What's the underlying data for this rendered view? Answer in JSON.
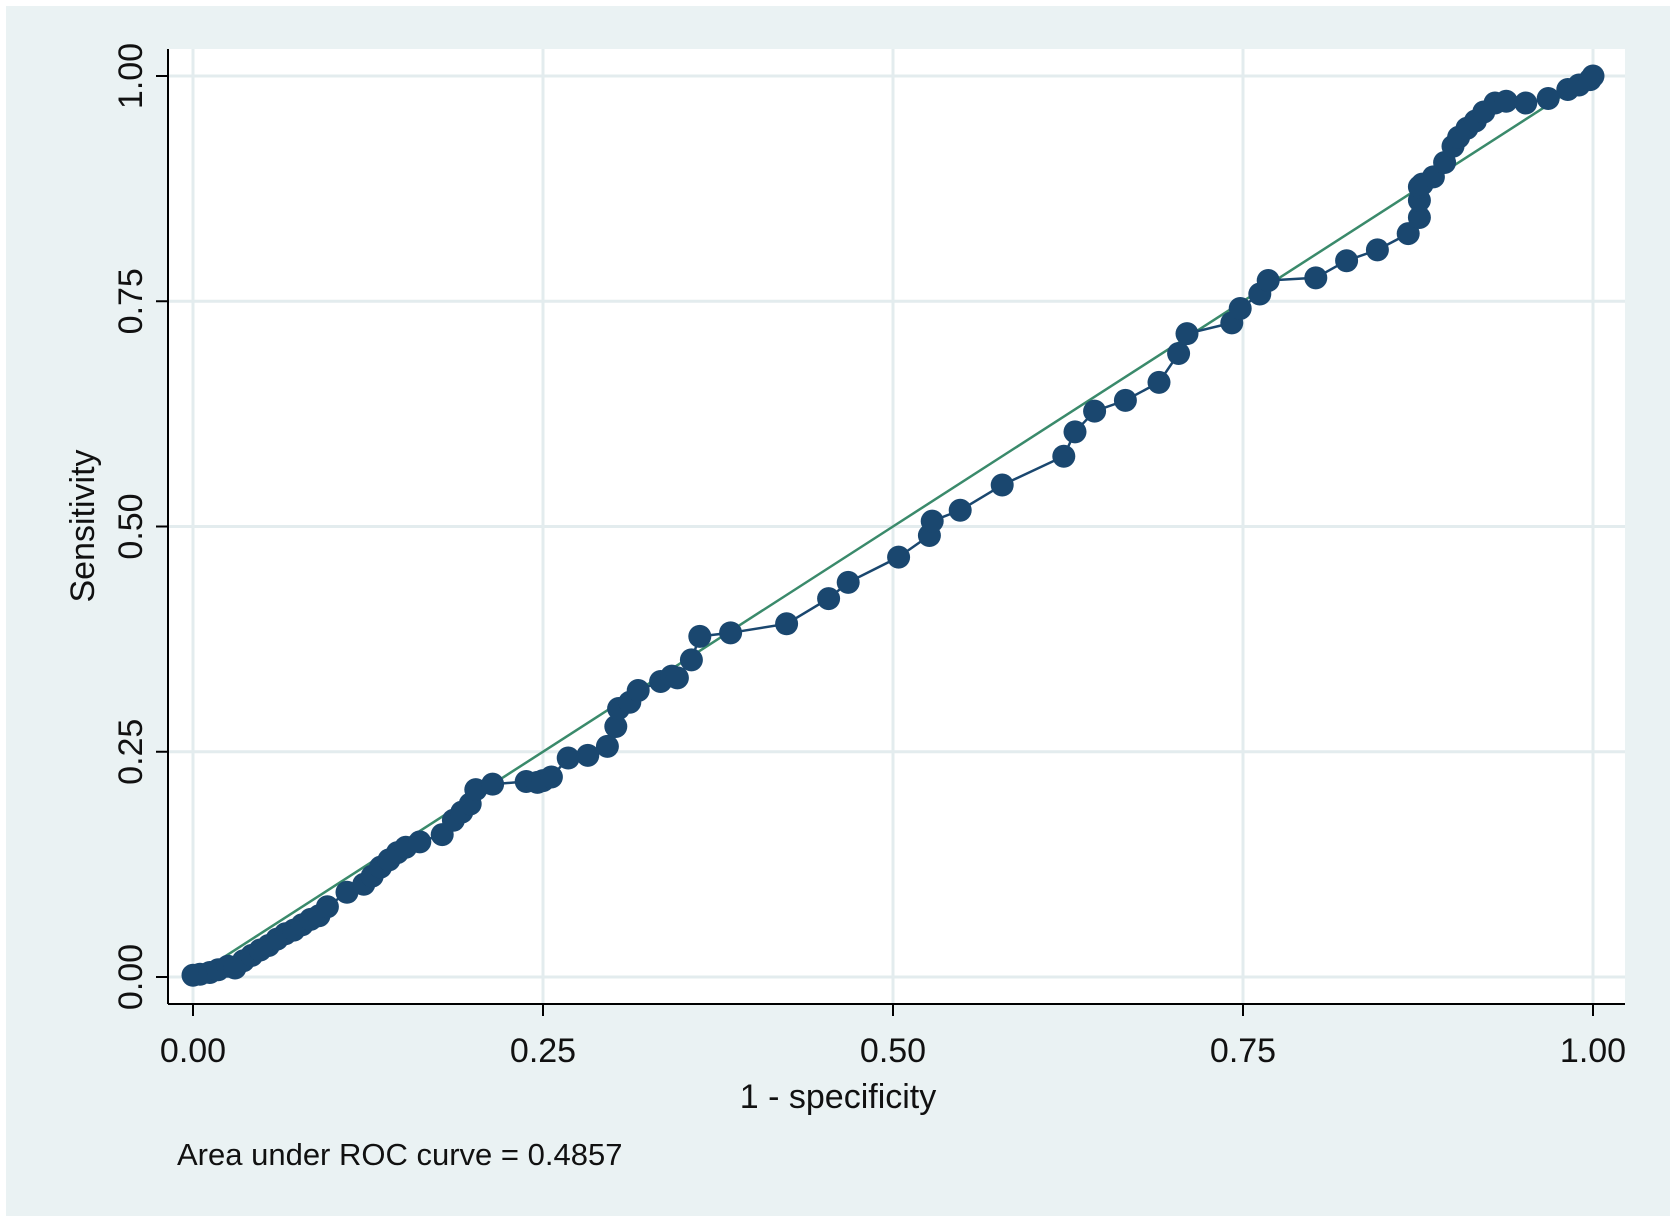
{
  "chart_data": {
    "type": "line",
    "title": "",
    "xlabel": "1 - specificity",
    "ylabel": "Sensitivity",
    "xlim": [
      0,
      1
    ],
    "ylim": [
      0,
      1
    ],
    "x_ticks": [
      "0.00",
      "0.25",
      "0.50",
      "0.75",
      "1.00"
    ],
    "y_ticks": [
      "0.00",
      "0.25",
      "0.50",
      "0.75",
      "1.00"
    ],
    "grid": true,
    "legend": "none",
    "note": "Area under ROC curve = 0.4857",
    "colors": {
      "background": "#eaf2f3",
      "plot_area": "#ffffff",
      "grid": "#e3ecee",
      "roc_curve": "#1a476f",
      "reference_line": "#3a8a6b"
    },
    "reference_line": {
      "x": [
        0,
        1
      ],
      "y": [
        0,
        1
      ]
    },
    "series": [
      {
        "x": [
          0.0,
          0.005,
          0.012,
          0.018,
          0.025,
          0.03,
          0.036,
          0.042,
          0.048,
          0.054,
          0.06,
          0.066,
          0.072,
          0.078,
          0.084,
          0.09,
          0.096,
          0.11,
          0.122,
          0.128,
          0.134,
          0.14,
          0.146,
          0.152,
          0.162,
          0.178,
          0.186,
          0.192,
          0.198,
          0.202,
          0.214,
          0.238,
          0.246,
          0.25,
          0.256,
          0.268,
          0.282,
          0.296,
          0.302,
          0.304,
          0.312,
          0.318,
          0.334,
          0.342,
          0.346,
          0.356,
          0.362,
          0.384,
          0.424,
          0.454,
          0.468,
          0.504,
          0.526,
          0.528,
          0.548,
          0.578,
          0.622,
          0.63,
          0.644,
          0.666,
          0.69,
          0.704,
          0.71,
          0.742,
          0.748,
          0.762,
          0.768,
          0.802,
          0.824,
          0.846,
          0.868,
          0.876,
          0.876,
          0.876,
          0.878,
          0.886,
          0.894,
          0.9,
          0.904,
          0.91,
          0.916,
          0.922,
          0.93,
          0.938,
          0.952,
          0.968,
          0.982,
          0.99,
          0.998,
          1.0
        ],
        "y": [
          0.002,
          0.003,
          0.005,
          0.008,
          0.012,
          0.01,
          0.018,
          0.024,
          0.03,
          0.035,
          0.042,
          0.048,
          0.052,
          0.058,
          0.064,
          0.068,
          0.078,
          0.094,
          0.103,
          0.112,
          0.122,
          0.13,
          0.138,
          0.144,
          0.15,
          0.158,
          0.174,
          0.183,
          0.192,
          0.208,
          0.214,
          0.217,
          0.216,
          0.218,
          0.222,
          0.243,
          0.246,
          0.256,
          0.278,
          0.298,
          0.305,
          0.318,
          0.328,
          0.334,
          0.332,
          0.352,
          0.378,
          0.382,
          0.392,
          0.42,
          0.438,
          0.466,
          0.49,
          0.506,
          0.518,
          0.546,
          0.578,
          0.605,
          0.628,
          0.64,
          0.66,
          0.692,
          0.714,
          0.726,
          0.742,
          0.758,
          0.773,
          0.776,
          0.795,
          0.807,
          0.825,
          0.843,
          0.862,
          0.877,
          0.88,
          0.888,
          0.904,
          0.922,
          0.932,
          0.942,
          0.95,
          0.96,
          0.97,
          0.972,
          0.97,
          0.975,
          0.985,
          0.99,
          0.996,
          1.0
        ]
      }
    ]
  }
}
